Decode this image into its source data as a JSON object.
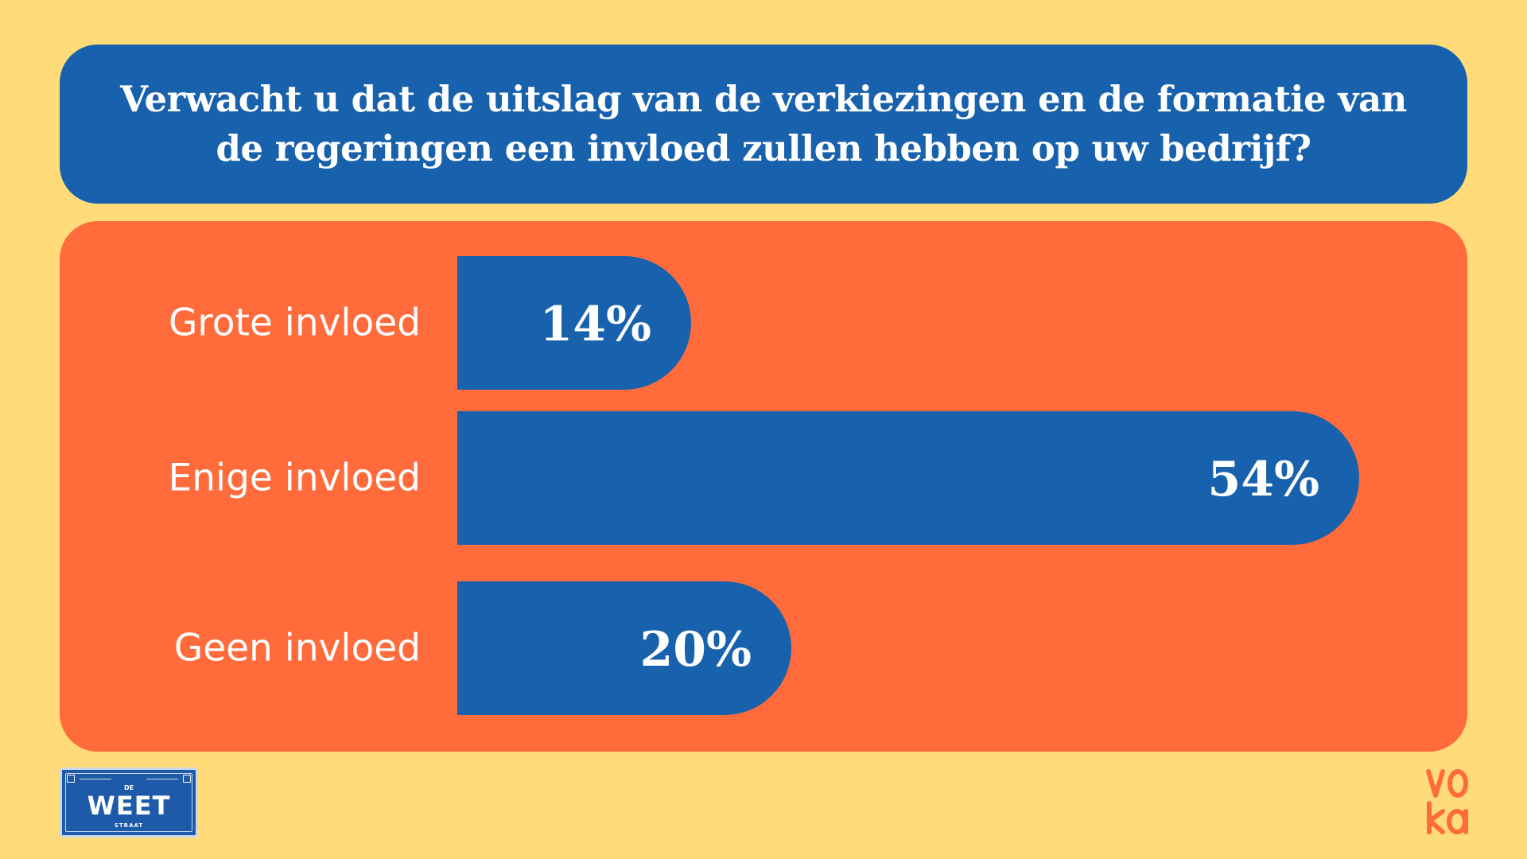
{
  "title": "Verwacht u dat de uitslag van de verkiezingen en de formatie van de regeringen een invloed zullen hebben op uw bedrijf?",
  "colors": {
    "background": "#ffdb79",
    "title_box": "#1861ad",
    "chart_box": "#ff6b3b",
    "bar": "#1861ad",
    "text": "#ffffff"
  },
  "chart_data": {
    "type": "bar",
    "orientation": "horizontal",
    "categories": [
      "Grote invloed",
      "Enige invloed",
      "Geen invloed"
    ],
    "values": [
      14,
      54,
      20
    ],
    "value_labels": [
      "14%",
      "54%",
      "20%"
    ],
    "unit": "%",
    "xlim": [
      0,
      56
    ],
    "grid": false,
    "legend": "none"
  },
  "logos": {
    "left": {
      "name": "de-weet-straat-logo",
      "top_text": "DE",
      "main_text": "WEET",
      "bottom_text": "STRAAT"
    },
    "right": {
      "name": "voka-logo",
      "text": "voka"
    }
  }
}
